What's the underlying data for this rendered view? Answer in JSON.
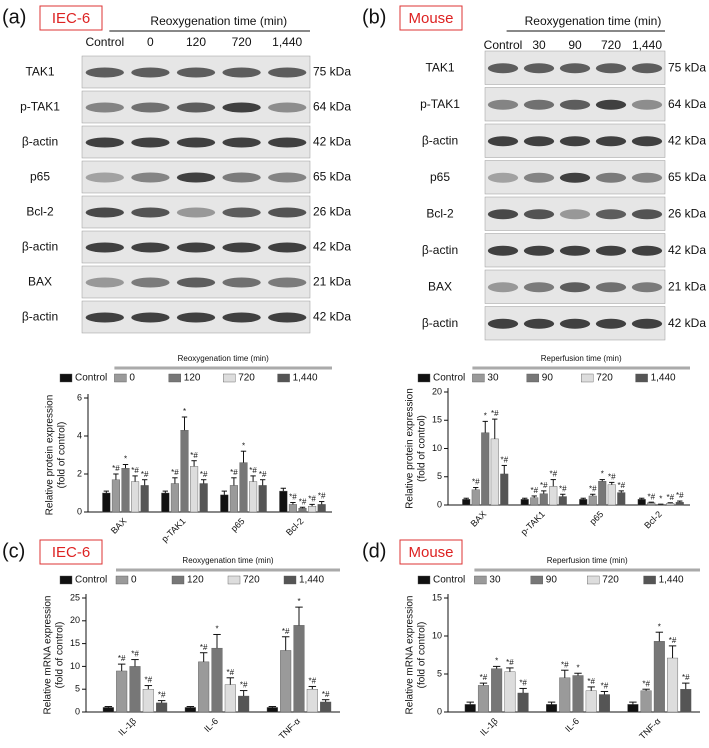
{
  "panels": [
    {
      "label": "(a)",
      "model": "IEC-6",
      "blot": {
        "header": "Reoxygenation time (min)",
        "lanes": [
          "Control",
          "0",
          "120",
          "720",
          "1,440"
        ],
        "rows": [
          {
            "protein": "TAK1",
            "size": "75 kDa"
          },
          {
            "protein": "p-TAK1",
            "size": "64 kDa"
          },
          {
            "protein": "β-actin",
            "size": "42 kDa"
          },
          {
            "protein": "p65",
            "size": "65 kDa"
          },
          {
            "protein": "Bcl-2",
            "size": "26 kDa"
          },
          {
            "protein": "β-actin",
            "size": "42 kDa"
          },
          {
            "protein": "BAX",
            "size": "21 kDa"
          },
          {
            "protein": "β-actin",
            "size": "42 kDa"
          }
        ]
      }
    },
    {
      "label": "(b)",
      "model": "Mouse",
      "blot": {
        "header": "Reoxygenation time (min)",
        "lanes": [
          "Control",
          "30",
          "90",
          "720",
          "1,440"
        ],
        "rows": [
          {
            "protein": "TAK1",
            "size": "75 kDa"
          },
          {
            "protein": "p-TAK1",
            "size": "64 kDa"
          },
          {
            "protein": "β-actin",
            "size": "42 kDa"
          },
          {
            "protein": "p65",
            "size": "65 kDa"
          },
          {
            "protein": "Bcl-2",
            "size": "26 kDa"
          },
          {
            "protein": "β-actin",
            "size": "42 kDa"
          },
          {
            "protein": "BAX",
            "size": "21 kDa"
          },
          {
            "protein": "β-actin",
            "size": "42 kDa"
          }
        ]
      }
    },
    {
      "label": "(c)",
      "model": "IEC-6"
    },
    {
      "label": "(d)",
      "model": "Mouse"
    }
  ],
  "chart_data": [
    {
      "type": "bar",
      "legend_title": "Reoxygenation time (min)",
      "ylabel": [
        "Relative protein expression",
        "(fold of control)"
      ],
      "categories": [
        "BAX",
        "p-TAK1",
        "p65",
        "Bcl-2"
      ],
      "ylim": [
        0,
        6
      ],
      "yticks": [
        0,
        2,
        4,
        6
      ],
      "series": [
        {
          "name": "Control",
          "color": "#111111",
          "values": [
            1.0,
            1.0,
            0.9,
            1.1
          ],
          "errors": [
            0.1,
            0.1,
            0.2,
            0.15
          ]
        },
        {
          "name": "0",
          "color": "#9a9a9a",
          "values": [
            1.7,
            1.5,
            1.4,
            0.4
          ],
          "errors": [
            0.3,
            0.3,
            0.4,
            0.1
          ],
          "markers": [
            "*#",
            "*#",
            "*#",
            "*#"
          ]
        },
        {
          "name": "120",
          "color": "#777777",
          "values": [
            2.3,
            4.3,
            2.6,
            0.2
          ],
          "errors": [
            0.2,
            0.7,
            0.6,
            0.05
          ],
          "markers": [
            "*",
            "*",
            "*",
            "*#"
          ]
        },
        {
          "name": "720",
          "color": "#dddddd",
          "values": [
            1.6,
            2.4,
            1.6,
            0.3
          ],
          "errors": [
            0.3,
            0.3,
            0.3,
            0.1
          ],
          "markers": [
            "*#",
            "*#",
            "*#",
            "*#"
          ]
        },
        {
          "name": "1,440",
          "color": "#555555",
          "values": [
            1.4,
            1.5,
            1.4,
            0.4
          ],
          "errors": [
            0.3,
            0.2,
            0.3,
            0.15
          ],
          "markers": [
            "*#",
            "*#",
            "*#",
            "*#"
          ]
        }
      ]
    },
    {
      "type": "bar",
      "legend_title": "Reperfusion time (min)",
      "ylabel": [
        "Relative protein expression",
        "(fold of control)"
      ],
      "categories": [
        "BAX",
        "p-TAK1",
        "p65",
        "Bcl-2"
      ],
      "ylim": [
        0,
        20
      ],
      "yticks": [
        0,
        5,
        10,
        15,
        20
      ],
      "series": [
        {
          "name": "Control",
          "color": "#111111",
          "values": [
            1.0,
            1.0,
            1.0,
            1.0
          ],
          "errors": [
            0.2,
            0.2,
            0.2,
            0.2
          ]
        },
        {
          "name": "30",
          "color": "#9a9a9a",
          "values": [
            2.7,
            1.3,
            1.6,
            0.4
          ],
          "errors": [
            0.4,
            0.3,
            0.3,
            0.1
          ],
          "markers": [
            "*#",
            "*#",
            "*#",
            "*#"
          ]
        },
        {
          "name": "90",
          "color": "#777777",
          "values": [
            12.8,
            2.0,
            4.2,
            0.1
          ],
          "errors": [
            2.0,
            0.5,
            0.3,
            0.05
          ],
          "markers": [
            "*",
            "*#",
            "*",
            "*"
          ]
        },
        {
          "name": "720",
          "color": "#dddddd",
          "values": [
            11.7,
            3.3,
            3.6,
            0.3
          ],
          "errors": [
            3.5,
            1.2,
            0.4,
            0.1
          ],
          "markers": [
            "*#",
            "*#",
            "*#",
            "*#"
          ]
        },
        {
          "name": "1,440",
          "color": "#555555",
          "values": [
            5.5,
            1.5,
            2.2,
            0.5
          ],
          "errors": [
            1.5,
            0.4,
            0.3,
            0.2
          ],
          "markers": [
            "*#",
            "*#",
            "*#",
            "*#"
          ]
        }
      ]
    },
    {
      "type": "bar",
      "legend_title": "Reoxygenation time (min)",
      "ylabel": [
        "Relative mRNA expression",
        "(fold of control)"
      ],
      "categories": [
        "IL-1β",
        "IL-6",
        "TNF-α"
      ],
      "ylim": [
        0,
        25
      ],
      "yticks": [
        0,
        5,
        10,
        15,
        20,
        25
      ],
      "series": [
        {
          "name": "Control",
          "color": "#111111",
          "values": [
            1.0,
            1.0,
            1.0
          ],
          "errors": [
            0.2,
            0.2,
            0.2
          ]
        },
        {
          "name": "0",
          "color": "#9a9a9a",
          "values": [
            9.0,
            11.0,
            13.5
          ],
          "errors": [
            1.5,
            2.0,
            3.0
          ],
          "markers": [
            "*#",
            "*#",
            "*#"
          ]
        },
        {
          "name": "120",
          "color": "#777777",
          "values": [
            10.0,
            14.0,
            19.0
          ],
          "errors": [
            1.5,
            3.0,
            4.0
          ],
          "markers": [
            "*#",
            "*",
            "*"
          ]
        },
        {
          "name": "720",
          "color": "#dddddd",
          "values": [
            5.0,
            6.0,
            5.0
          ],
          "errors": [
            0.8,
            1.5,
            0.6
          ],
          "markers": [
            "*#",
            "*#",
            "*#"
          ]
        },
        {
          "name": "1,440",
          "color": "#555555",
          "values": [
            2.0,
            3.5,
            2.2
          ],
          "errors": [
            0.5,
            1.2,
            0.5
          ],
          "markers": [
            "*#",
            "*#",
            "*#"
          ]
        }
      ]
    },
    {
      "type": "bar",
      "legend_title": "Reperfusion time (min)",
      "ylabel": [
        "Relative mRNA expression",
        "(fold of control)"
      ],
      "categories": [
        "IL-1β",
        "IL-6",
        "TNF-α"
      ],
      "ylim": [
        0,
        15
      ],
      "yticks": [
        0,
        5,
        10,
        15
      ],
      "series": [
        {
          "name": "Control",
          "color": "#111111",
          "values": [
            1.0,
            1.0,
            1.0
          ],
          "errors": [
            0.3,
            0.3,
            0.3
          ]
        },
        {
          "name": "30",
          "color": "#9a9a9a",
          "values": [
            3.5,
            4.5,
            2.8
          ],
          "errors": [
            0.3,
            1.0,
            0.2
          ],
          "markers": [
            "*#",
            "*#",
            "*#"
          ]
        },
        {
          "name": "90",
          "color": "#777777",
          "values": [
            5.7,
            4.8,
            9.3
          ],
          "errors": [
            0.3,
            0.3,
            1.2
          ],
          "markers": [
            "*",
            "*",
            "*"
          ]
        },
        {
          "name": "720",
          "color": "#dddddd",
          "values": [
            5.3,
            2.8,
            7.1
          ],
          "errors": [
            0.5,
            0.5,
            1.6
          ],
          "markers": [
            "*#",
            "*#",
            "*#"
          ]
        },
        {
          "name": "1,440",
          "color": "#555555",
          "values": [
            2.5,
            2.3,
            3.0
          ],
          "errors": [
            0.6,
            0.4,
            0.8
          ],
          "markers": [
            "*#",
            "*#",
            "*#"
          ]
        }
      ]
    }
  ]
}
